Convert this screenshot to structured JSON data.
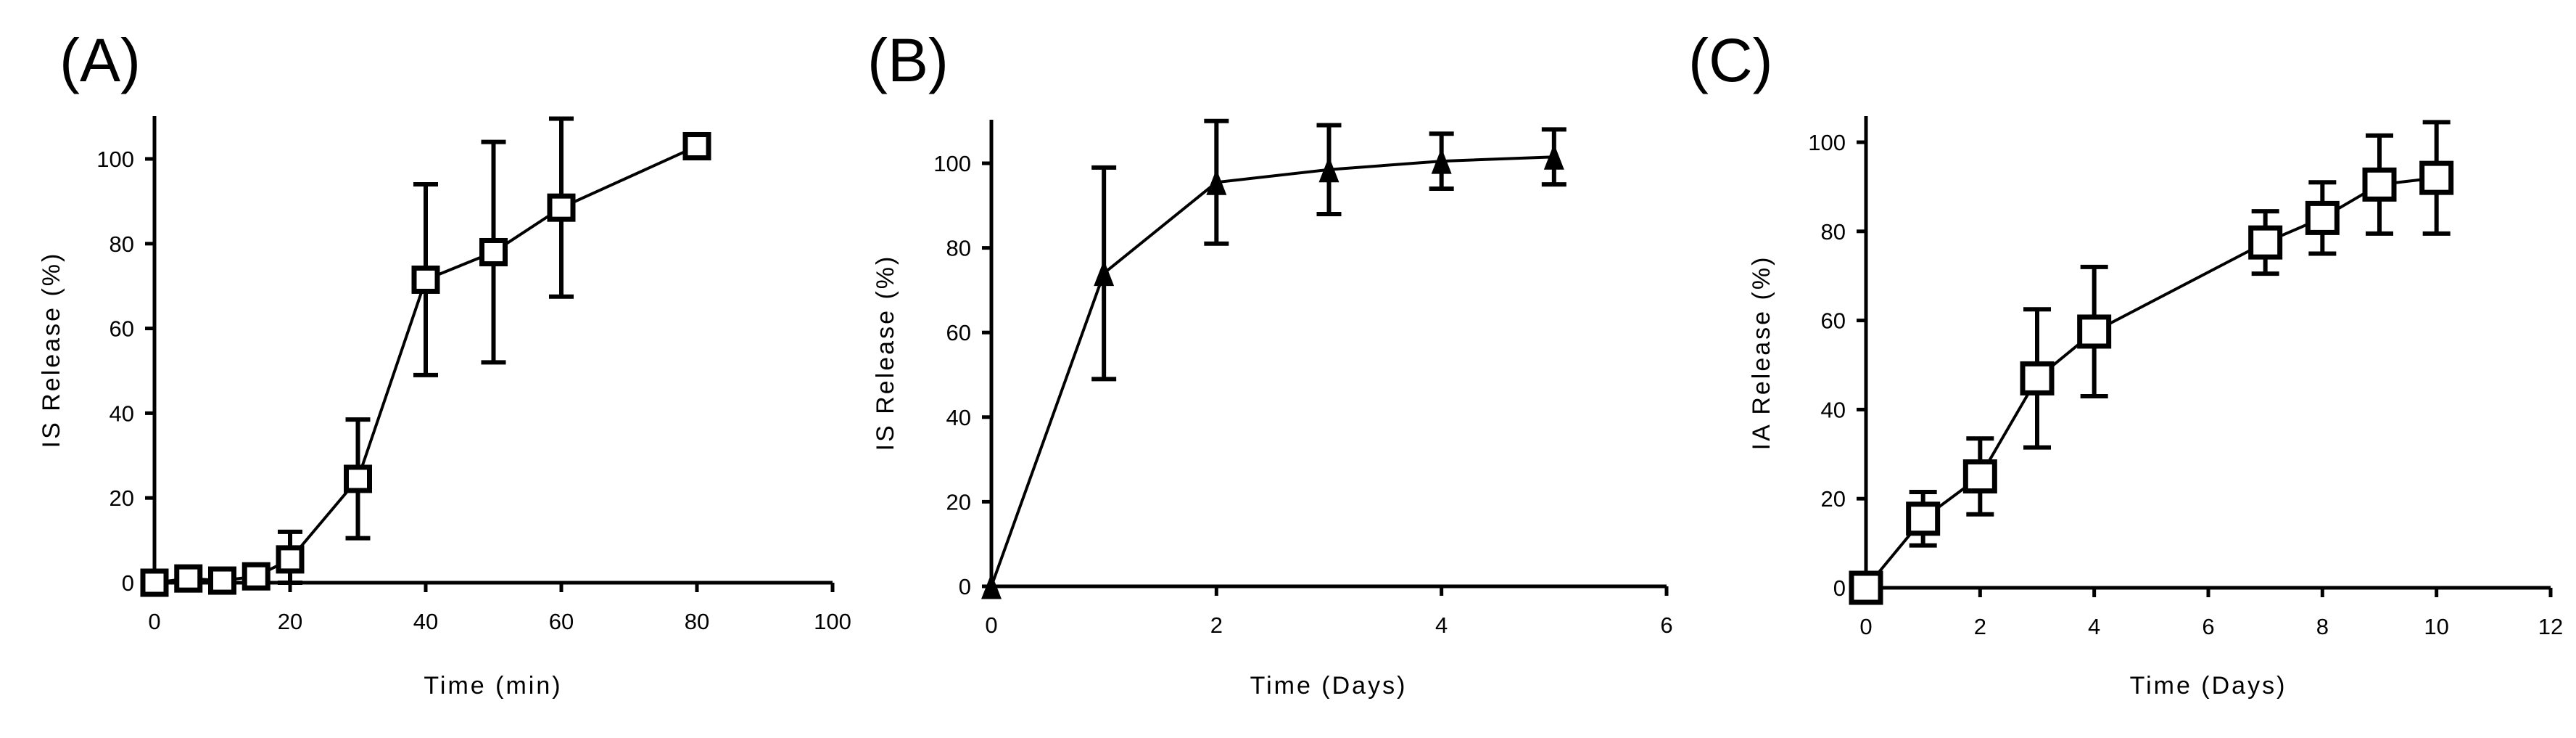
{
  "chart_data": [
    {
      "type": "line",
      "panel": "(A)",
      "xlabel": "Time (min)",
      "ylabel": "IS Release (%)",
      "xlim": [
        0,
        100
      ],
      "ylim": [
        0,
        110
      ],
      "xticks": [
        0,
        20,
        40,
        60,
        80,
        100
      ],
      "yticks": [
        0,
        20,
        40,
        60,
        80,
        100
      ],
      "marker": "square-open",
      "series": [
        {
          "name": "IS Release",
          "x": [
            0,
            5,
            10,
            15,
            20,
            30,
            40,
            50,
            60,
            80
          ],
          "y": [
            0,
            1,
            0.5,
            1.5,
            5.5,
            24.5,
            71.5,
            78,
            88.5,
            103
          ],
          "err": [
            0,
            0,
            0,
            0,
            6.5,
            14,
            22.5,
            26,
            21,
            0
          ]
        }
      ]
    },
    {
      "type": "line",
      "panel": "(B)",
      "xlabel": "Time (Days)",
      "ylabel": "IS Release (%)",
      "xlim": [
        0,
        6
      ],
      "ylim": [
        0,
        110
      ],
      "xticks": [
        0,
        2,
        4,
        6
      ],
      "yticks": [
        0,
        20,
        40,
        60,
        80,
        100
      ],
      "marker": "triangle-filled",
      "series": [
        {
          "name": "IS Release",
          "x": [
            0,
            1,
            2,
            3,
            4,
            5
          ],
          "y": [
            0,
            74,
            95.5,
            98.5,
            100.5,
            101.5
          ],
          "err": [
            0,
            25,
            14.5,
            10.5,
            6.5,
            6.5
          ]
        }
      ]
    },
    {
      "type": "line",
      "panel": "(C)",
      "xlabel": "Time (Days)",
      "ylabel": "IA Release (%)",
      "xlim": [
        0,
        12
      ],
      "ylim": [
        0,
        105
      ],
      "xticks": [
        0,
        2,
        4,
        6,
        8,
        10,
        12
      ],
      "yticks": [
        0,
        20,
        40,
        60,
        80,
        100
      ],
      "marker": "square-open-bold",
      "series": [
        {
          "name": "IA Release",
          "x": [
            0,
            1,
            2,
            3,
            4,
            7,
            8,
            9,
            10
          ],
          "y": [
            0,
            15.5,
            25,
            47,
            57.5,
            77.5,
            83,
            90.5,
            92
          ],
          "err": [
            0,
            6,
            8.5,
            15.5,
            14.5,
            7,
            8,
            11,
            12.5
          ]
        }
      ]
    }
  ]
}
